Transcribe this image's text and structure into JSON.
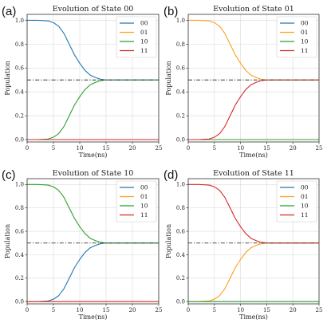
{
  "chart_data": [
    {
      "type": "line",
      "panel_label": "(a)",
      "title": "Evolution of State 00",
      "xlabel": "Time(ns)",
      "ylabel": "Population",
      "xlim": [
        0,
        25
      ],
      "ylim": [
        -0.02,
        1.05
      ],
      "xticks": [
        0,
        5,
        10,
        15,
        20,
        25
      ],
      "yticks": [
        0.0,
        0.2,
        0.4,
        0.6,
        0.8,
        1.0
      ],
      "grid": true,
      "legend_position": "top-right",
      "reference_line": {
        "y": 0.5,
        "style": "dash-dot",
        "color": "#333333"
      },
      "series": [
        {
          "name": "00",
          "color": "#1f77b4",
          "x": [
            0,
            2,
            4,
            5,
            6,
            7,
            8,
            9,
            10,
            11,
            12,
            13,
            14,
            15,
            16,
            18,
            20,
            25
          ],
          "values": [
            1.0,
            1.0,
            0.995,
            0.98,
            0.95,
            0.89,
            0.8,
            0.71,
            0.64,
            0.58,
            0.54,
            0.52,
            0.505,
            0.5,
            0.5,
            0.5,
            0.5,
            0.5
          ]
        },
        {
          "name": "01",
          "color": "#ff9f1c",
          "x": [
            0,
            25
          ],
          "values": [
            0.0,
            0.0
          ]
        },
        {
          "name": "10",
          "color": "#2ca02c",
          "x": [
            0,
            2,
            4,
            5,
            6,
            7,
            8,
            9,
            10,
            11,
            12,
            13,
            14,
            15,
            16,
            18,
            20,
            25
          ],
          "values": [
            0.0,
            0.0,
            0.005,
            0.02,
            0.05,
            0.11,
            0.2,
            0.29,
            0.36,
            0.42,
            0.46,
            0.48,
            0.495,
            0.5,
            0.5,
            0.5,
            0.5,
            0.5
          ]
        },
        {
          "name": "11",
          "color": "#d62728",
          "x": [
            0,
            25
          ],
          "values": [
            0.0,
            0.0
          ]
        }
      ]
    },
    {
      "type": "line",
      "panel_label": "(b)",
      "title": "Evolution of State 01",
      "xlabel": "Time(ns)",
      "ylabel": "Population",
      "xlim": [
        0,
        25
      ],
      "ylim": [
        -0.02,
        1.05
      ],
      "xticks": [
        0,
        5,
        10,
        15,
        20,
        25
      ],
      "yticks": [
        0.0,
        0.2,
        0.4,
        0.6,
        0.8,
        1.0
      ],
      "grid": true,
      "legend_position": "top-right",
      "reference_line": {
        "y": 0.5,
        "style": "dash-dot",
        "color": "#333333"
      },
      "series": [
        {
          "name": "00",
          "color": "#1f77b4",
          "x": [
            0,
            25
          ],
          "values": [
            0.0,
            0.0
          ]
        },
        {
          "name": "01",
          "color": "#ff9f1c",
          "x": [
            0,
            2,
            4,
            5,
            6,
            7,
            8,
            9,
            10,
            11,
            12,
            13,
            14,
            15,
            16,
            18,
            20,
            25
          ],
          "values": [
            1.0,
            1.0,
            0.995,
            0.98,
            0.95,
            0.89,
            0.8,
            0.71,
            0.64,
            0.58,
            0.54,
            0.52,
            0.505,
            0.5,
            0.5,
            0.5,
            0.5,
            0.5
          ]
        },
        {
          "name": "10",
          "color": "#2ca02c",
          "x": [
            0,
            25
          ],
          "values": [
            0.0,
            0.0
          ]
        },
        {
          "name": "11",
          "color": "#d62728",
          "x": [
            0,
            2,
            4,
            5,
            6,
            7,
            8,
            9,
            10,
            11,
            12,
            13,
            14,
            15,
            16,
            18,
            20,
            25
          ],
          "values": [
            0.0,
            0.0,
            0.005,
            0.02,
            0.05,
            0.11,
            0.2,
            0.29,
            0.36,
            0.42,
            0.46,
            0.48,
            0.495,
            0.5,
            0.5,
            0.5,
            0.5,
            0.5
          ]
        }
      ]
    },
    {
      "type": "line",
      "panel_label": "(c)",
      "title": "Evolution of State 10",
      "xlabel": "Time(ns)",
      "ylabel": "Population",
      "xlim": [
        0,
        25
      ],
      "ylim": [
        -0.02,
        1.05
      ],
      "xticks": [
        0,
        5,
        10,
        15,
        20,
        25
      ],
      "yticks": [
        0.0,
        0.2,
        0.4,
        0.6,
        0.8,
        1.0
      ],
      "grid": true,
      "legend_position": "top-right",
      "reference_line": {
        "y": 0.5,
        "style": "dash-dot",
        "color": "#333333"
      },
      "series": [
        {
          "name": "00",
          "color": "#1f77b4",
          "x": [
            0,
            2,
            4,
            5,
            6,
            7,
            8,
            9,
            10,
            11,
            12,
            13,
            14,
            15,
            16,
            18,
            20,
            25
          ],
          "values": [
            0.0,
            0.0,
            0.005,
            0.02,
            0.05,
            0.11,
            0.2,
            0.29,
            0.36,
            0.42,
            0.46,
            0.48,
            0.495,
            0.5,
            0.5,
            0.5,
            0.5,
            0.5
          ]
        },
        {
          "name": "01",
          "color": "#ff9f1c",
          "x": [
            0,
            25
          ],
          "values": [
            0.0,
            0.0
          ]
        },
        {
          "name": "10",
          "color": "#2ca02c",
          "x": [
            0,
            2,
            4,
            5,
            6,
            7,
            8,
            9,
            10,
            11,
            12,
            13,
            14,
            15,
            16,
            18,
            20,
            25
          ],
          "values": [
            1.0,
            1.0,
            0.995,
            0.98,
            0.95,
            0.89,
            0.8,
            0.71,
            0.64,
            0.58,
            0.54,
            0.52,
            0.505,
            0.5,
            0.5,
            0.5,
            0.5,
            0.5
          ]
        },
        {
          "name": "11",
          "color": "#d62728",
          "x": [
            0,
            25
          ],
          "values": [
            0.0,
            0.0
          ]
        }
      ]
    },
    {
      "type": "line",
      "panel_label": "(d)",
      "title": "Evolution of State 11",
      "xlabel": "Time(ns)",
      "ylabel": "Population",
      "xlim": [
        0,
        25
      ],
      "ylim": [
        -0.02,
        1.05
      ],
      "xticks": [
        0,
        5,
        10,
        15,
        20,
        25
      ],
      "yticks": [
        0.0,
        0.2,
        0.4,
        0.6,
        0.8,
        1.0
      ],
      "grid": true,
      "legend_position": "top-right",
      "reference_line": {
        "y": 0.5,
        "style": "dash-dot",
        "color": "#333333"
      },
      "series": [
        {
          "name": "00",
          "color": "#1f77b4",
          "x": [
            0,
            25
          ],
          "values": [
            0.0,
            0.0
          ]
        },
        {
          "name": "01",
          "color": "#ff9f1c",
          "x": [
            0,
            2,
            4,
            5,
            6,
            7,
            8,
            9,
            10,
            11,
            12,
            13,
            14,
            15,
            16,
            18,
            20,
            25
          ],
          "values": [
            0.0,
            0.0,
            0.005,
            0.02,
            0.05,
            0.11,
            0.2,
            0.29,
            0.36,
            0.42,
            0.46,
            0.48,
            0.495,
            0.5,
            0.5,
            0.5,
            0.5,
            0.5
          ]
        },
        {
          "name": "10",
          "color": "#2ca02c",
          "x": [
            0,
            25
          ],
          "values": [
            0.0,
            0.0
          ]
        },
        {
          "name": "11",
          "color": "#d62728",
          "x": [
            0,
            2,
            4,
            5,
            6,
            7,
            8,
            9,
            10,
            11,
            12,
            13,
            14,
            15,
            16,
            18,
            20,
            25
          ],
          "values": [
            1.0,
            1.0,
            0.995,
            0.98,
            0.95,
            0.89,
            0.8,
            0.71,
            0.64,
            0.58,
            0.54,
            0.52,
            0.505,
            0.5,
            0.5,
            0.5,
            0.5,
            0.5
          ]
        }
      ]
    }
  ]
}
